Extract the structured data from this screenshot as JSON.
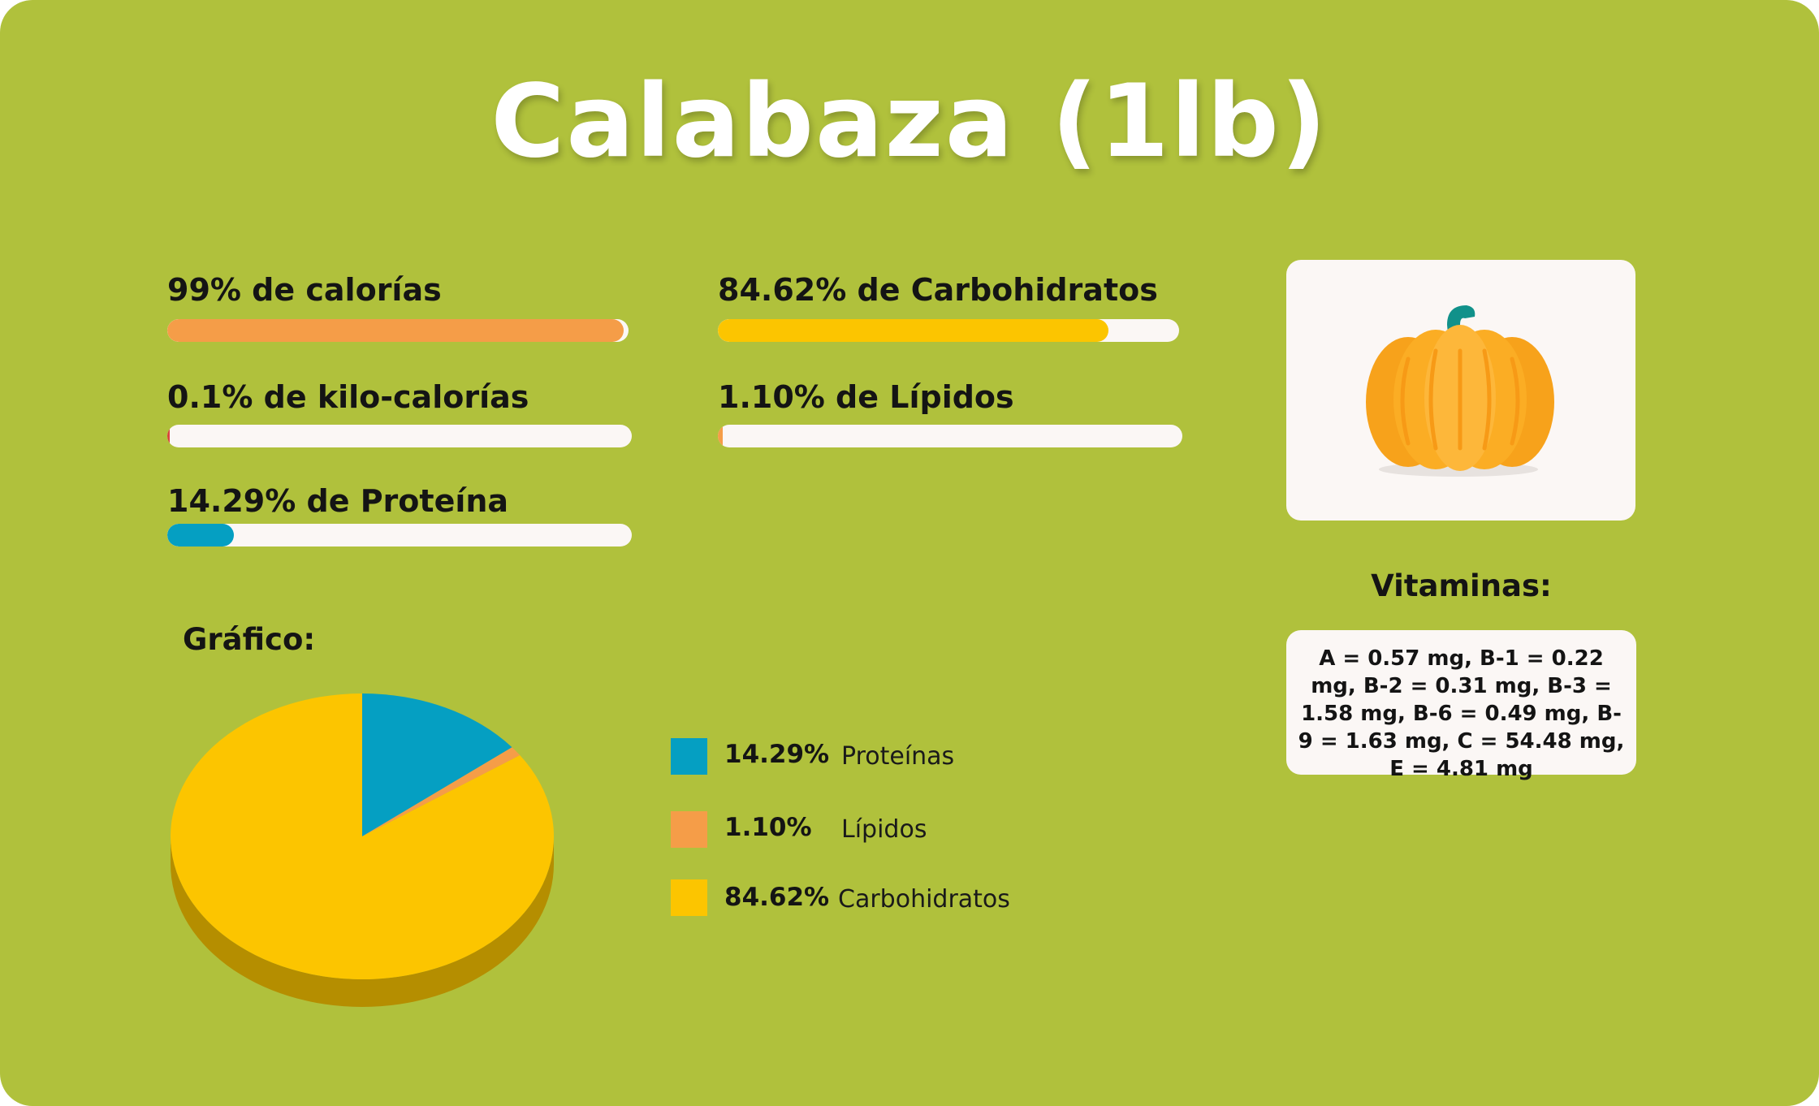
{
  "title": "Calabaza (1lb)",
  "metrics": [
    {
      "label": "99% de calorías",
      "percent": 99,
      "color": "#f59d48"
    },
    {
      "label": "84.62% de Carbohidratos",
      "percent": 84.62,
      "color": "#fcc500"
    },
    {
      "label": "0.1% de kilo-calorías",
      "percent": 0.1,
      "color": "#d9443c"
    },
    {
      "label": "1.10% de Lípidos",
      "percent": 1.1,
      "color": "#f59d48"
    },
    {
      "label": "14.29% de Proteína",
      "percent": 14.29,
      "color": "#059fc2"
    }
  ],
  "image": {
    "icon": "pumpkin-icon"
  },
  "vitamins": {
    "heading": "Vitaminas:",
    "text": "A = 0.57 mg, B-1 = 0.22 mg, B-2 = 0.31 mg, B-3 = 1.58 mg, B-6 = 0.49 mg, B-9 = 1.63 mg, C = 54.48 mg, E = 4.81 mg"
  },
  "chart_heading": "Gráfico:",
  "chart_data": {
    "type": "pie",
    "title": "",
    "style": "3d",
    "slices": [
      {
        "name": "Proteínas",
        "label": "14.29%",
        "value": 14.29,
        "color": "#059fc2"
      },
      {
        "name": "Lípidos",
        "label": "1.10%",
        "value": 1.1,
        "color": "#f59d48"
      },
      {
        "name": "Carbohidratos",
        "label": "84.62%",
        "value": 84.62,
        "color": "#fcc500"
      }
    ],
    "legend_position": "right"
  }
}
